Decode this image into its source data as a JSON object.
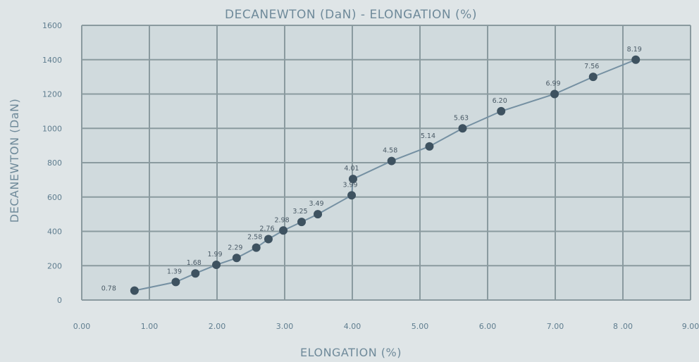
{
  "chart_data": {
    "type": "line",
    "title": "DECANEWTON (DaN) - ELONGATION (%)",
    "xlabel": "ELONGATION (%)",
    "ylabel": "DECANEWTON (DaN)",
    "xlim": [
      0,
      9
    ],
    "ylim": [
      0,
      1600
    ],
    "x_ticks": [
      "0.00",
      "1.00",
      "2.00",
      "3.00",
      "4.00",
      "5.00",
      "6.00",
      "7.00",
      "8 .00",
      "9.00"
    ],
    "y_ticks": [
      "0",
      "200",
      "400",
      "600",
      "800",
      "1000",
      "1200",
      "1400",
      "1600"
    ],
    "grid": true,
    "legend": "none",
    "colors": {
      "background": "#dfe5e7",
      "plot_area": "#d0dadd",
      "grid": "#8a9a9f",
      "line": "#7590a2",
      "marker": "#3e5260"
    },
    "series": [
      {
        "x": [
          0.78,
          1.39,
          1.68,
          1.99,
          2.29,
          2.58,
          2.76,
          2.98,
          3.25,
          3.49,
          3.99,
          4.01,
          4.58,
          5.14,
          5.63,
          6.2,
          6.99,
          7.56,
          8.19
        ],
        "y": [
          55,
          105,
          155,
          205,
          245,
          305,
          355,
          405,
          455,
          500,
          610,
          705,
          810,
          895,
          1000,
          1100,
          1200,
          1300,
          1400
        ],
        "labels": [
          "0.78",
          "1.39",
          "1.68",
          "1.99",
          "2.29",
          "2.58",
          "2.76",
          "2.98",
          "3.25",
          "3.49",
          "3.99",
          "4.01",
          "4.58",
          "5.14",
          "5.63",
          "6.20",
          "6.99",
          "7.56",
          "8.19"
        ]
      }
    ]
  }
}
